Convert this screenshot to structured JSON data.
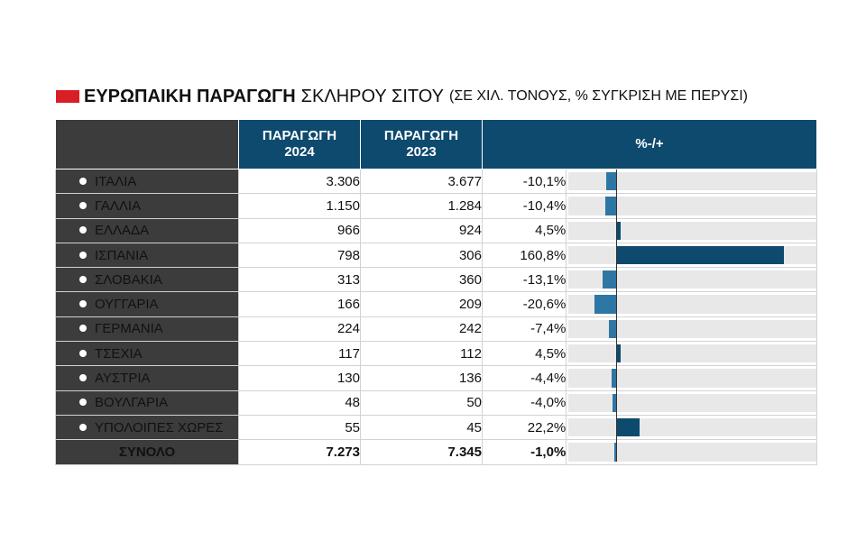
{
  "title": {
    "bold": "ΕΥΡΩΠΑΙΚΗ ΠΑΡΑΓΩΓΗ",
    "light": "ΣΚΛΗΡΟΥ ΣΙΤΟΥ",
    "paren": "(ΣΕ ΧΙΛ. ΤΟΝΟΥΣ, % ΣΥΓΚΡΙΣΗ ΜΕ ΠΕΡΥΣΙ)"
  },
  "header": {
    "col2024_line1": "ΠΑΡΑΓΩΓΗ",
    "col2024_line2": "2024",
    "col2023_line1": "ΠΑΡΑΓΩΓΗ",
    "col2023_line2": "2023",
    "change": "%-/+"
  },
  "colors": {
    "header_blue": "#0e4a6e",
    "bar_negative": "#2e76a3",
    "bar_positive": "#0e4a6e",
    "title_marker": "#d81f26"
  },
  "chart_data": {
    "type": "table",
    "columns": [
      "ΠΑΡΑΓΩΓΗ 2024",
      "ΠΑΡΑΓΩΓΗ 2023",
      "%-/+"
    ],
    "rows": [
      {
        "name": "ΙΤΑΛΙΑ",
        "v2024": "3.306",
        "v2023": "3.677",
        "pct_label": "-10,1%",
        "pct": -10.1
      },
      {
        "name": "ΓΑΛΛΙΑ",
        "v2024": "1.150",
        "v2023": "1.284",
        "pct_label": "-10,4%",
        "pct": -10.4
      },
      {
        "name": "ΕΛΛΑΔΑ",
        "v2024": "966",
        "v2023": "924",
        "pct_label": "4,5%",
        "pct": 4.5
      },
      {
        "name": "ΙΣΠΑΝΙΑ",
        "v2024": "798",
        "v2023": "306",
        "pct_label": "160,8%",
        "pct": 160.8
      },
      {
        "name": "ΣΛΟΒΑΚΙΑ",
        "v2024": "313",
        "v2023": "360",
        "pct_label": "-13,1%",
        "pct": -13.1
      },
      {
        "name": "ΟΥΓΓΑΡΙΑ",
        "v2024": "166",
        "v2023": "209",
        "pct_label": "-20,6%",
        "pct": -20.6
      },
      {
        "name": "ΓΕΡΜΑΝΙΑ",
        "v2024": "224",
        "v2023": "242",
        "pct_label": "-7,4%",
        "pct": -7.4
      },
      {
        "name": "ΤΣΕΧΙΑ",
        "v2024": "117",
        "v2023": "112",
        "pct_label": "4,5%",
        "pct": 4.5
      },
      {
        "name": "ΑΥΣΤΡΙΑ",
        "v2024": "130",
        "v2023": "136",
        "pct_label": "-4,4%",
        "pct": -4.4
      },
      {
        "name": "ΒΟΥΛΓΑΡΙΑ",
        "v2024": "48",
        "v2023": "50",
        "pct_label": "-4,0%",
        "pct": -4.0
      },
      {
        "name": "ΥΠΟΛΟΙΠΕΣ ΧΩΡΕΣ",
        "v2024": "55",
        "v2023": "45",
        "pct_label": "22,2%",
        "pct": 22.2
      }
    ],
    "total": {
      "name": "ΣΥΝΟΛΟ",
      "v2024": "7.273",
      "v2023": "7.345",
      "pct_label": "-1,0%",
      "pct": -1.0
    }
  }
}
